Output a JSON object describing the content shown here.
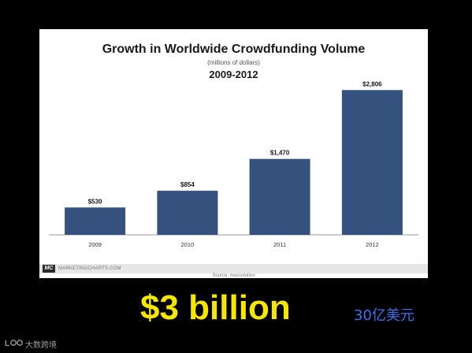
{
  "chart_data": {
    "type": "bar",
    "title": "Growth in Worldwide Crowdfunding Volume",
    "subtitle": "(millions of dollars)",
    "period": "2009-2012",
    "categories": [
      "2009",
      "2010",
      "2011",
      "2012"
    ],
    "values": [
      530,
      854,
      1470,
      2806
    ],
    "value_labels": [
      "$530",
      "$854",
      "$1,470",
      "$2,806"
    ],
    "xlabel": "",
    "ylabel": "",
    "ylim": [
      0,
      3100
    ],
    "grid": false,
    "legend": "none",
    "bar_color": "#34527d"
  },
  "footer": {
    "logo_text": "MC",
    "brand": "MARKETINGCHARTS.COM",
    "source": "Source: massolution"
  },
  "caption": {
    "amount": "$3 billion",
    "amount_color": "#f5e600",
    "chinese": "30亿美元",
    "chinese_color": "#3d6fe8"
  },
  "watermark": {
    "icon": "lang-logo-icon",
    "text": "大数跨境"
  }
}
